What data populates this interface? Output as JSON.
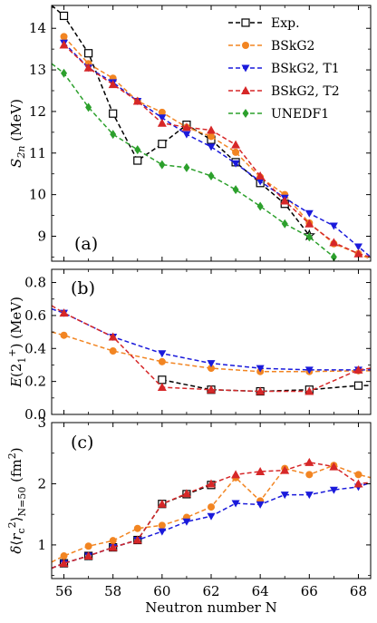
{
  "chart_data": [
    {
      "type": "line",
      "panel_label": "(a)",
      "ylabel": "S_2n (MeV)",
      "xlim": [
        55.5,
        68.5
      ],
      "ylim": [
        8.4,
        14.55
      ],
      "yticks": [
        9,
        10,
        11,
        12,
        13,
        14
      ],
      "legend": {
        "placement": "top-right"
      },
      "series": [
        {
          "name": "Exp.",
          "color": "#000000",
          "marker": "square-open",
          "x": [
            55.5,
            56,
            57,
            58,
            59,
            60,
            61,
            62,
            63,
            64,
            65,
            66
          ],
          "y": [
            14.55,
            14.3,
            13.4,
            11.95,
            10.82,
            11.22,
            11.68,
            11.32,
            10.78,
            10.28,
            9.78,
            9.02
          ],
          "last_marker": "star-open"
        },
        {
          "name": "BSkG2",
          "color": "#f28522",
          "marker": "circle",
          "x": [
            56,
            57,
            58,
            59,
            60,
            61,
            62,
            63,
            64,
            65,
            66,
            67,
            68,
            68.5
          ],
          "y": [
            13.8,
            13.15,
            12.8,
            12.25,
            11.98,
            11.62,
            11.4,
            11.02,
            10.42,
            10.0,
            9.32,
            8.82,
            8.58,
            8.45
          ]
        },
        {
          "name": "BSkG2, T1",
          "color": "#1a1adb",
          "marker": "triangle-down",
          "x": [
            56,
            57,
            58,
            59,
            60,
            61,
            62,
            63,
            64,
            65,
            66,
            67,
            68,
            68.5
          ],
          "y": [
            13.65,
            13.05,
            12.7,
            12.25,
            11.85,
            11.45,
            11.15,
            10.75,
            10.32,
            9.92,
            9.55,
            9.25,
            8.75,
            8.5
          ]
        },
        {
          "name": "BSkG2, T2",
          "color": "#d62728",
          "marker": "triangle-up",
          "x": [
            56,
            57,
            58,
            59,
            60,
            61,
            62,
            63,
            64,
            65,
            66,
            67,
            68,
            68.5
          ],
          "y": [
            13.6,
            13.05,
            12.65,
            12.25,
            11.72,
            11.62,
            11.55,
            11.2,
            10.45,
            9.85,
            9.3,
            8.85,
            8.58,
            8.5
          ]
        },
        {
          "name": "UNEDF1",
          "color": "#2ca02c",
          "marker": "diamond",
          "x": [
            55.5,
            56,
            57,
            58,
            59,
            60,
            61,
            62,
            63,
            64,
            65,
            66,
            67,
            67.8
          ],
          "y": [
            13.15,
            12.92,
            12.1,
            11.45,
            11.08,
            10.72,
            10.65,
            10.45,
            10.12,
            9.72,
            9.3,
            8.98,
            8.5,
            8.05
          ]
        }
      ]
    },
    {
      "type": "line",
      "panel_label": "(b)",
      "ylabel": "E(2_1^+) (MeV)",
      "xlim": [
        55.5,
        68.5
      ],
      "ylim": [
        0.0,
        0.88
      ],
      "yticks": [
        0.0,
        0.2,
        0.4,
        0.6,
        0.8
      ],
      "series": [
        {
          "name": "Exp.",
          "color": "#000000",
          "marker": "square-open",
          "x": [
            60,
            62,
            64,
            66,
            68,
            68.5
          ],
          "y": [
            0.21,
            0.15,
            0.14,
            0.15,
            0.175,
            0.175
          ]
        },
        {
          "name": "BSkG2",
          "color": "#f28522",
          "marker": "circle",
          "x": [
            55.5,
            56,
            58,
            60,
            62,
            64,
            66,
            68,
            68.5
          ],
          "y": [
            0.5,
            0.48,
            0.385,
            0.32,
            0.28,
            0.26,
            0.26,
            0.265,
            0.265
          ]
        },
        {
          "name": "BSkG2, T1",
          "color": "#1a1adb",
          "marker": "triangle-down",
          "x": [
            55.5,
            56,
            58,
            60,
            62,
            64,
            66,
            68,
            68.5
          ],
          "y": [
            0.64,
            0.615,
            0.47,
            0.37,
            0.31,
            0.28,
            0.27,
            0.27,
            0.27
          ]
        },
        {
          "name": "BSkG2, T2",
          "color": "#d62728",
          "marker": "triangle-up",
          "x": [
            55.5,
            56,
            58,
            60,
            62,
            64,
            66,
            68,
            68.5
          ],
          "y": [
            0.66,
            0.615,
            0.47,
            0.165,
            0.15,
            0.14,
            0.14,
            0.27,
            0.28
          ]
        }
      ]
    },
    {
      "type": "line",
      "panel_label": "(c)",
      "ylabel": "δ⟨r_c^2⟩_{N=50} (fm^2)",
      "xlabel": "Neutron number N",
      "xlim": [
        55.5,
        68.5
      ],
      "ylim": [
        0.45,
        3.0
      ],
      "yticks": [
        1,
        2,
        3
      ],
      "xticks": [
        56,
        58,
        60,
        62,
        64,
        66,
        68
      ],
      "series": [
        {
          "name": "Exp.",
          "color": "#000000",
          "marker": "square-open",
          "x": [
            55.5,
            56,
            57,
            58,
            59,
            60,
            61,
            62
          ],
          "y": [
            0.62,
            0.7,
            0.82,
            0.96,
            1.08,
            1.67,
            1.83,
            1.98
          ]
        },
        {
          "name": "BSkG2",
          "color": "#f28522",
          "marker": "circle",
          "x": [
            55.5,
            56,
            57,
            58,
            59,
            60,
            61,
            62,
            63,
            64,
            65,
            66,
            67,
            68,
            68.5
          ],
          "y": [
            0.72,
            0.82,
            0.98,
            1.07,
            1.27,
            1.32,
            1.45,
            1.62,
            2.1,
            1.72,
            2.25,
            2.15,
            2.3,
            2.15,
            2.1
          ]
        },
        {
          "name": "BSkG2, T1",
          "color": "#1a1adb",
          "marker": "triangle-down",
          "x": [
            55.5,
            56,
            57,
            58,
            59,
            60,
            61,
            62,
            63,
            64,
            65,
            66,
            67,
            68,
            68.5
          ],
          "y": [
            0.62,
            0.7,
            0.82,
            0.96,
            1.08,
            1.22,
            1.38,
            1.47,
            1.68,
            1.66,
            1.82,
            1.82,
            1.9,
            1.95,
            2.02
          ]
        },
        {
          "name": "BSkG2, T2",
          "color": "#d62728",
          "marker": "triangle-up",
          "x": [
            55.5,
            56,
            57,
            58,
            59,
            60,
            61,
            62,
            63,
            64,
            65,
            66,
            67,
            68,
            68.5
          ],
          "y": [
            0.62,
            0.7,
            0.82,
            0.96,
            1.08,
            1.67,
            1.84,
            2.0,
            2.15,
            2.2,
            2.22,
            2.35,
            2.28,
            2.0,
            2.02
          ]
        }
      ]
    }
  ],
  "x_ticks": [
    56,
    58,
    60,
    62,
    64,
    66,
    68
  ],
  "xlabel": "Neutron number N"
}
